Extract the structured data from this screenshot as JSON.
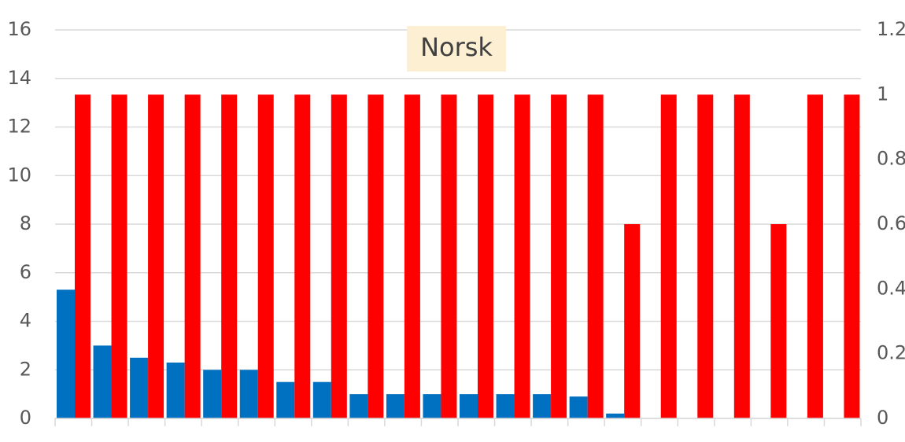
{
  "chart_data": {
    "type": "bar",
    "title": "Norsk",
    "categories": [
      null,
      null,
      null,
      null,
      null,
      null,
      null,
      null,
      null,
      null,
      null,
      null,
      null,
      null,
      null,
      null,
      null,
      null,
      null,
      null,
      null,
      null
    ],
    "series": [
      {
        "color": "#0070c0",
        "values": [
          5.3,
          3.0,
          2.5,
          2.3,
          2.0,
          2.0,
          1.5,
          1.5,
          1.0,
          1.0,
          1.0,
          1.0,
          1.0,
          1.0,
          0.9,
          0.2,
          0,
          0,
          0,
          0,
          0,
          0
        ]
      },
      {
        "color": "#ff0000",
        "axis": "y2",
        "values": [
          1,
          1,
          1,
          1,
          1,
          1,
          1,
          1,
          1,
          1,
          1,
          1,
          1,
          1,
          1,
          0.6,
          1,
          1,
          1,
          0.6,
          1,
          1
        ]
      }
    ],
    "ylim": [
      0,
      16
    ],
    "yticks": [
      0,
      2,
      4,
      6,
      8,
      10,
      12,
      14,
      16
    ],
    "y2lim": [
      0,
      1.2
    ],
    "y2ticks": [
      0,
      0.2,
      0.4,
      0.6,
      0.8,
      1,
      1.2
    ],
    "grid": true
  }
}
